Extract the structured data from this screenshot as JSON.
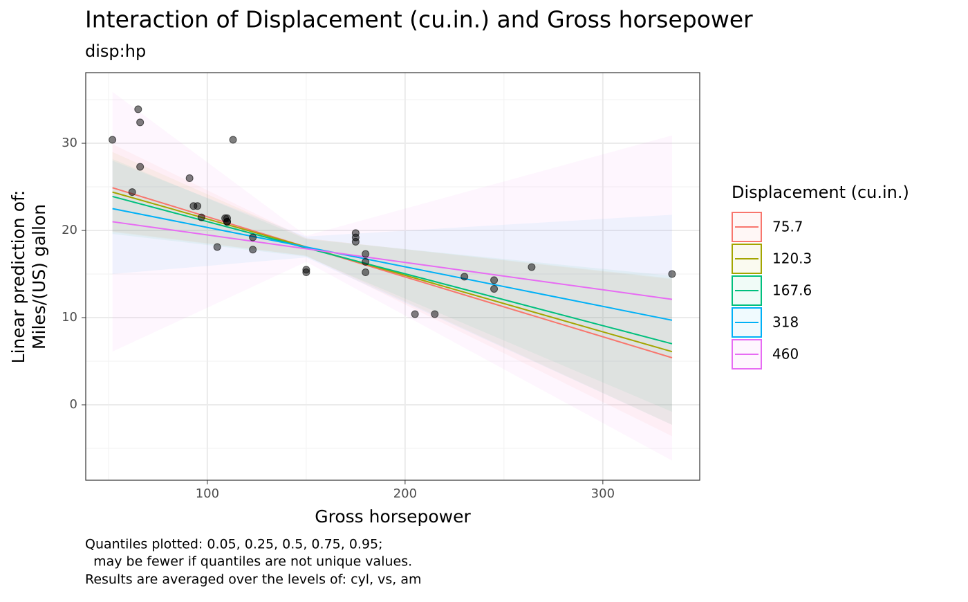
{
  "chart_data": {
    "type": "line",
    "title": "Interaction of Displacement (cu.in.) and Gross horsepower",
    "subtitle": "disp:hp",
    "x_label": "Gross horsepower",
    "y_label": [
      "Linear prediction of:",
      "Miles/(US) gallon"
    ],
    "legend_title": "Displacement (cu.in.)",
    "legend_position": "right",
    "caption": [
      "Quantiles plotted: 0.05, 0.25, 0.5, 0.75, 0.95;",
      "  may be fewer if quantiles are not unique values.",
      "Results are averaged over the levels of: cyl, vs, am"
    ],
    "grid": true,
    "xlim": [
      38.5,
      349
    ],
    "ylim": [
      -8.65,
      38.1
    ],
    "xticks": [
      100,
      200,
      300
    ],
    "yticks": [
      0,
      10,
      20,
      30
    ],
    "xminor": [
      50,
      150,
      250
    ],
    "yminor": [
      -5,
      5,
      15,
      25,
      35
    ],
    "x": [
      52,
      150,
      335
    ],
    "series": [
      {
        "name": "75.7",
        "color": "#F8766D",
        "values": [
          24.9,
          18.1,
          5.4
        ],
        "lower": [
          19.9,
          17.1,
          -3.6
        ],
        "upper": [
          29.9,
          19.1,
          14.4
        ]
      },
      {
        "name": "120.3",
        "color": "#A3A500",
        "values": [
          24.4,
          18.1,
          6.1
        ],
        "lower": [
          19.8,
          17.1,
          -2.3
        ],
        "upper": [
          29.0,
          19.1,
          14.5
        ]
      },
      {
        "name": "167.6",
        "color": "#00BF7D",
        "values": [
          23.9,
          18.0,
          7.0
        ],
        "lower": [
          19.6,
          17.0,
          -0.8
        ],
        "upper": [
          28.2,
          19.0,
          14.8
        ]
      },
      {
        "name": "318",
        "color": "#00B0F6",
        "values": [
          22.5,
          18.1,
          9.7
        ],
        "lower": [
          15.0,
          16.9,
          -2.3
        ],
        "upper": [
          28.0,
          19.3,
          21.8
        ]
      },
      {
        "name": "460",
        "color": "#E76BF3",
        "values": [
          21.0,
          17.9,
          12.1
        ],
        "lower": [
          6.1,
          16.4,
          -6.4
        ],
        "upper": [
          35.9,
          19.4,
          30.9
        ]
      }
    ],
    "points": {
      "color": "#000000",
      "x": [
        110,
        110,
        93,
        110,
        175,
        105,
        245,
        62,
        95,
        123,
        123,
        180,
        180,
        180,
        205,
        215,
        230,
        66,
        52,
        65,
        97,
        150,
        150,
        245,
        175,
        66,
        91,
        113,
        264,
        175,
        335,
        109
      ],
      "y": [
        21.0,
        21.0,
        22.8,
        21.4,
        18.7,
        18.1,
        14.3,
        24.4,
        22.8,
        19.2,
        17.8,
        16.4,
        17.3,
        15.2,
        10.4,
        10.4,
        14.7,
        32.4,
        30.4,
        33.9,
        21.5,
        15.5,
        15.2,
        13.3,
        19.2,
        27.3,
        26.0,
        30.4,
        15.8,
        19.7,
        15.0,
        21.4
      ]
    }
  }
}
